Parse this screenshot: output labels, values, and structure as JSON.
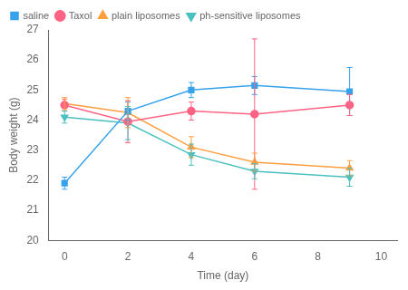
{
  "chart_data": {
    "type": "line",
    "x": [
      0,
      2,
      4,
      6,
      9
    ],
    "xlabel": "Time (day)",
    "ylabel": "Body weight (g)",
    "xlim": [
      -0.5,
      10.5
    ],
    "xticks": [
      0,
      2,
      4,
      6,
      8,
      10
    ],
    "ylim": [
      20,
      27
    ],
    "yticks": [
      20,
      21,
      22,
      23,
      24,
      25,
      26,
      27
    ],
    "grid": false,
    "legend": "upper left",
    "series": [
      {
        "name": "saline",
        "marker": "square",
        "values": [
          21.9,
          24.3,
          25.0,
          25.15,
          24.95
        ],
        "errors": [
          0.2,
          0.3,
          0.25,
          0.3,
          0.8
        ]
      },
      {
        "name": "Taxol",
        "marker": "circle",
        "values": [
          24.5,
          23.95,
          24.3,
          24.2,
          24.5
        ],
        "errors": [
          0.2,
          0.7,
          0.3,
          2.5,
          0.35
        ]
      },
      {
        "name": "plain liposomes",
        "marker": "triangle-up",
        "values": [
          24.55,
          24.25,
          23.1,
          22.6,
          22.4
        ],
        "errors": [
          0.2,
          0.5,
          0.35,
          0.3,
          0.25
        ]
      },
      {
        "name": "ph-sensitive liposomes",
        "marker": "triangle-down",
        "values": [
          24.1,
          23.9,
          22.85,
          22.3,
          22.1
        ],
        "errors": [
          0.2,
          0.55,
          0.35,
          0.25,
          0.3
        ]
      }
    ]
  }
}
